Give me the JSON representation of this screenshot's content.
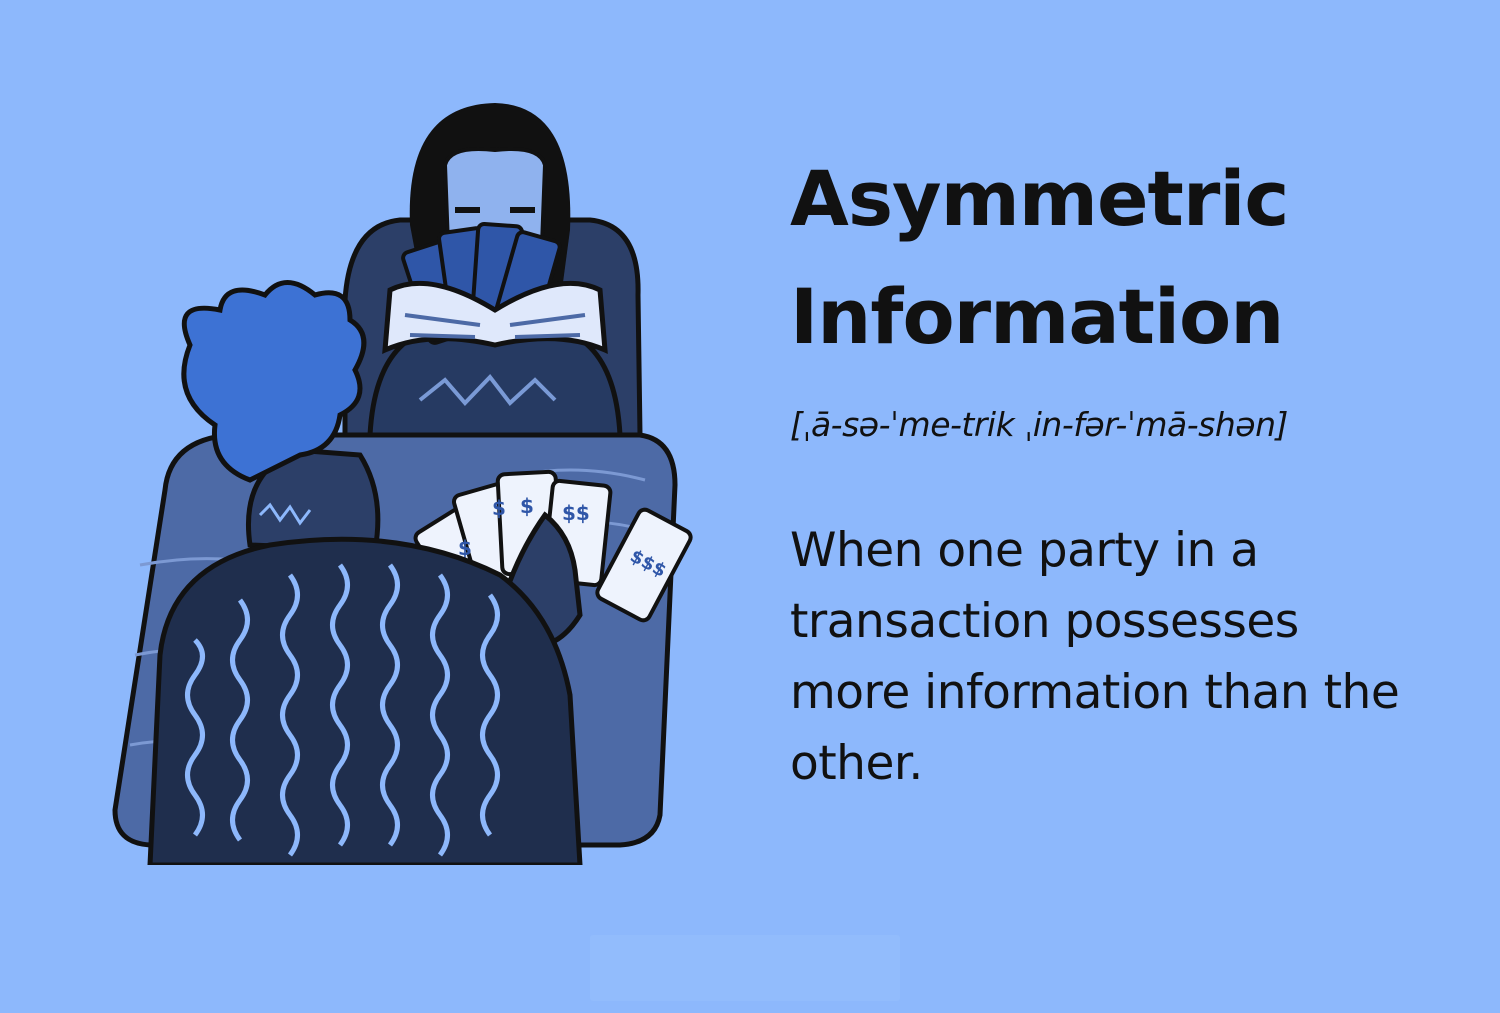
{
  "colors": {
    "background": "#8db8fc",
    "text": "#111111",
    "navy": "#1f2e4d",
    "table": "#4d6aa6",
    "hair_blue": "#3d72d4"
  },
  "illustration": {
    "icon": "card-players-illustration"
  },
  "term": {
    "line1": "Asymmetric",
    "line2": "Information"
  },
  "pronunciation": "[ˌā-sə-ˈme-trik ˌin-fər-ˈmā-shən]",
  "definition": "When one party in a transaction possesses more information than the other."
}
